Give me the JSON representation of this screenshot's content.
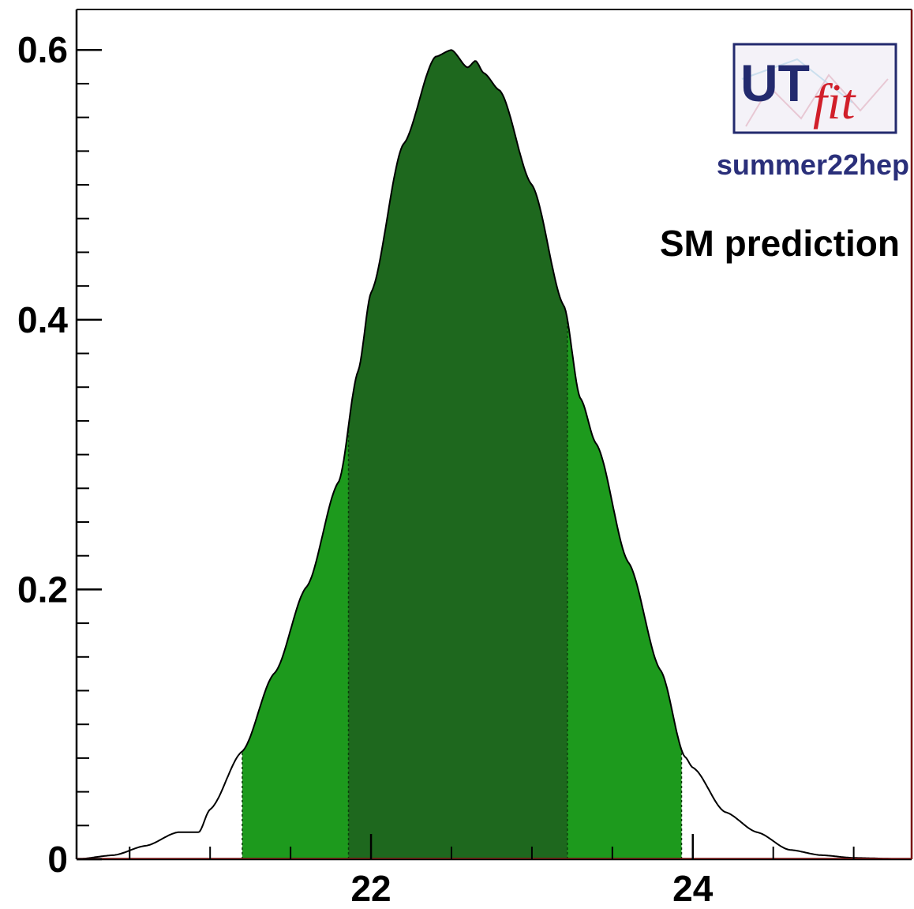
{
  "chart_data": {
    "type": "area",
    "title": "",
    "xlabel": "",
    "ylabel": "",
    "xlim": [
      20.17,
      25.36
    ],
    "ylim": [
      0,
      0.63
    ],
    "x_ticks": [
      22,
      24
    ],
    "y_ticks": [
      0,
      0.2,
      0.4,
      0.6
    ],
    "grid": false,
    "legend": "none",
    "series": [
      {
        "x": [
          20.17,
          20.4,
          20.6,
          20.8,
          20.93,
          21.0,
          21.2,
          21.4,
          21.6,
          21.8,
          21.92,
          22.0,
          22.2,
          22.4,
          22.5,
          22.6,
          22.65,
          22.7,
          22.8,
          23.0,
          23.2,
          23.3,
          23.4,
          23.6,
          23.8,
          23.95,
          24.0,
          24.2,
          24.4,
          24.6,
          24.8,
          25.0,
          25.36
        ],
        "values": [
          0.0,
          0.003,
          0.01,
          0.02,
          0.02,
          0.037,
          0.08,
          0.138,
          0.202,
          0.28,
          0.362,
          0.42,
          0.53,
          0.595,
          0.6,
          0.587,
          0.592,
          0.583,
          0.57,
          0.5,
          0.41,
          0.342,
          0.308,
          0.22,
          0.14,
          0.076,
          0.068,
          0.035,
          0.02,
          0.007,
          0.003,
          0.001,
          0.0
        ]
      }
    ],
    "intervals": [
      {
        "from": 21.2,
        "to": 23.93,
        "color": "#1d9a1d"
      },
      {
        "from": 21.86,
        "to": 23.22,
        "color": "#1e681e"
      }
    ],
    "annotations": {
      "logo_ut": "UT",
      "logo_fit": "fit",
      "subtitle": "summer22hep",
      "label": "SM prediction"
    },
    "colors": {
      "outer_band": "#1d9a1d",
      "inner_band": "#1e681e",
      "curve": "#000000",
      "subtitle": "#2a2f7a",
      "logo_ut": "#232a6e",
      "logo_fit": "#d11f2a",
      "frame_right": "#7a1414"
    }
  }
}
